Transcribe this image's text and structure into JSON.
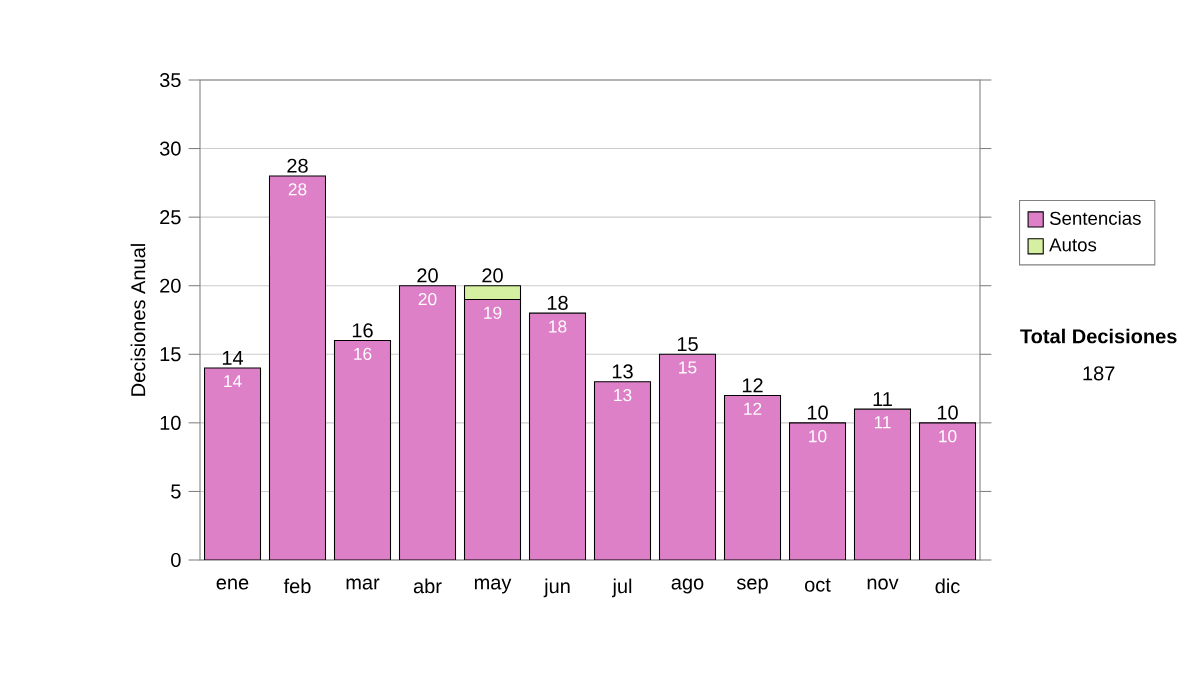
{
  "chart_data": {
    "type": "bar",
    "stacked": true,
    "ylabel": "Decisiones Anual",
    "categories": [
      "ene",
      "feb",
      "mar",
      "abr",
      "may",
      "jun",
      "jul",
      "ago",
      "sep",
      "oct",
      "nov",
      "dic"
    ],
    "series": [
      {
        "name": "Sentencias",
        "color": "#dd80c8",
        "values": [
          14,
          28,
          16,
          20,
          19,
          18,
          13,
          15,
          12,
          10,
          11,
          10
        ],
        "value_labels": [
          "14",
          "28",
          "16",
          "20",
          "19",
          "18",
          "13",
          "15",
          "12",
          "10",
          "11",
          "10"
        ]
      },
      {
        "name": "Autos",
        "color": "#d4f0a0",
        "values": [
          0,
          0,
          0,
          0,
          1,
          0,
          0,
          0,
          0,
          0,
          0,
          0
        ]
      }
    ],
    "totals": [
      "14",
      "28",
      "16",
      "20",
      "20",
      "18",
      "13",
      "15",
      "12",
      "10",
      "11",
      "10"
    ],
    "ylim": [
      0,
      35
    ],
    "yticks": [
      0,
      5,
      10,
      15,
      20,
      25,
      30,
      35
    ],
    "grid": "y",
    "legend": "right",
    "annotations": [
      "Total Decisiones",
      "187"
    ]
  }
}
